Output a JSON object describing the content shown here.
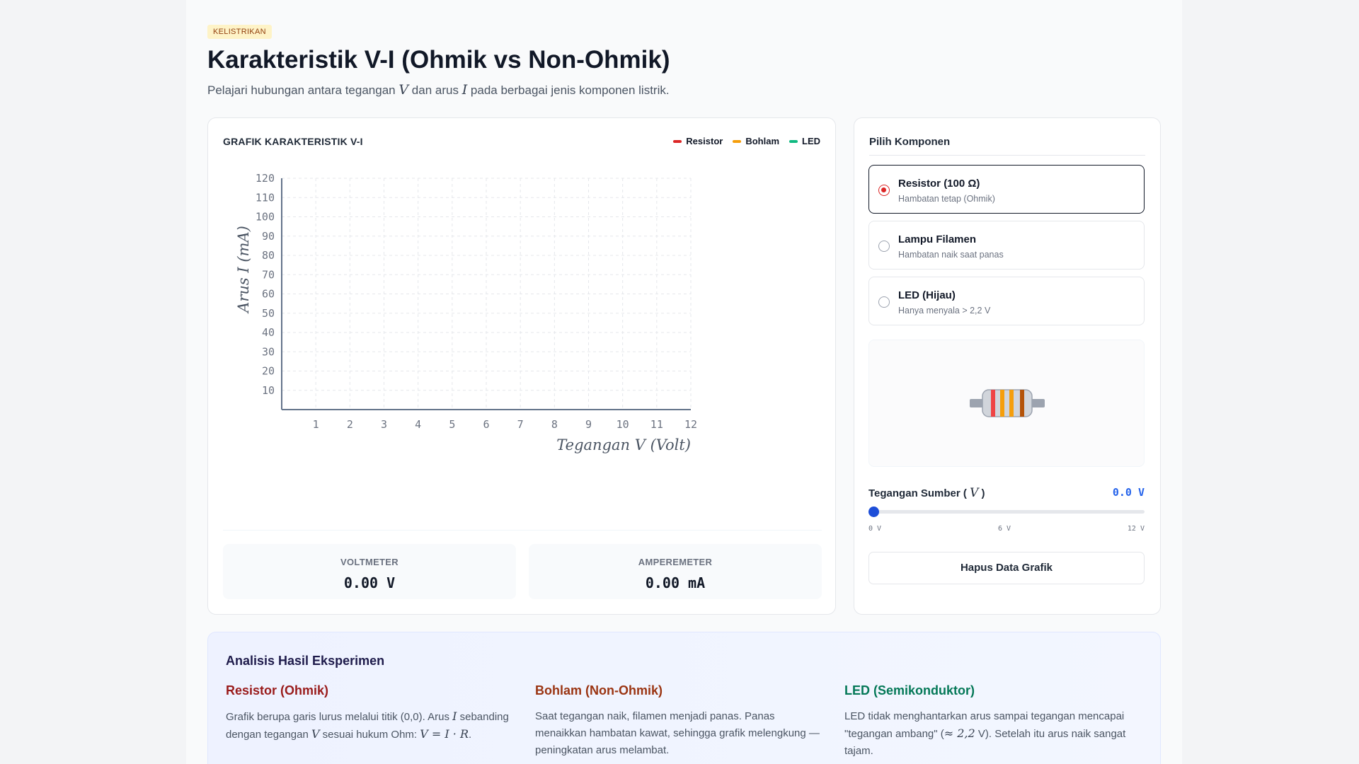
{
  "header": {
    "tag": "KELISTRIKAN",
    "title": "Karakteristik V-I (Ohmik vs Non-Ohmik)",
    "subtitle_pre": "Pelajari hubungan antara tegangan ",
    "subtitle_v": "V",
    "subtitle_mid": " dan arus ",
    "subtitle_i": "I",
    "subtitle_post": " pada berbagai jenis komponen listrik."
  },
  "graph": {
    "heading": "GRAFIK KARAKTERISTIK V-I",
    "legend": [
      {
        "label": "Resistor",
        "color": "#dc2626"
      },
      {
        "label": "Bohlam",
        "color": "#f59e0b"
      },
      {
        "label": "LED",
        "color": "#10b981"
      }
    ]
  },
  "chart_data": {
    "type": "line",
    "xlabel": "Tegangan V (Volt)",
    "ylabel": "Arus I (mA)",
    "xlim": [
      0,
      12
    ],
    "ylim": [
      0,
      120
    ],
    "x_ticks": [
      "1",
      "2",
      "3",
      "4",
      "5",
      "6",
      "7",
      "8",
      "9",
      "10",
      "11",
      "12"
    ],
    "y_ticks": [
      "10",
      "20",
      "30",
      "40",
      "50",
      "60",
      "70",
      "80",
      "90",
      "100",
      "110",
      "120"
    ],
    "grid": true,
    "series": []
  },
  "meters": {
    "voltmeter_label": "VOLTMETER",
    "voltmeter_value": "0.00 V",
    "amperemeter_label": "AMPEREMETER",
    "amperemeter_value": "0.00 mA"
  },
  "controls": {
    "title": "Pilih Komponen",
    "options": [
      {
        "name": "Resistor (100 Ω)",
        "desc": "Hambatan tetap (Ohmik)",
        "selected": true
      },
      {
        "name": "Lampu Filamen",
        "desc": "Hambatan naik saat panas",
        "selected": false
      },
      {
        "name": "LED (Hijau)",
        "desc": "Hanya menyala > 2,2 V",
        "selected": false
      }
    ],
    "voltage_label_pre": "Tegangan Sumber ( ",
    "voltage_label_var": "V",
    "voltage_label_post": " )",
    "voltage_value": "0.0 V",
    "slider_fraction": 0,
    "slider_min": "0 V",
    "slider_mid": "6 V",
    "slider_max": "12 V",
    "clear_button": "Hapus Data Grafik"
  },
  "resistor_colors": {
    "body": "#d1d5db",
    "band1": "#ef4444",
    "band2": "#f59e0b",
    "band3": "#f59e0b",
    "band4": "#b45309"
  },
  "analysis": {
    "title": "Analisis Hasil Eksperimen",
    "columns": [
      {
        "head": "Resistor (Ohmik)",
        "color": "#991b1b",
        "t1": "Grafik berupa garis lurus melalui titik (0,0). Arus ",
        "v1": "I",
        "t2": " sebanding dengan tegangan ",
        "v2": "V",
        "t3": " sesuai hukum Ohm: ",
        "v3": "V = I · R",
        "t4": "."
      },
      {
        "head": "Bohlam (Non-Ohmik)",
        "color": "#9a3412",
        "text": "Saat tegangan naik, filamen menjadi panas. Panas menaikkan hambatan kawat, sehingga grafik melengkung — peningkatan arus melambat."
      },
      {
        "head": "LED (Semikonduktor)",
        "color": "#047857",
        "t1": "LED tidak menghantarkan arus sampai tegangan mencapai \"tegangan ambang\" (",
        "v1": "≈ 2,2",
        "t2": " V). Setelah itu arus naik sangat tajam."
      }
    ]
  }
}
